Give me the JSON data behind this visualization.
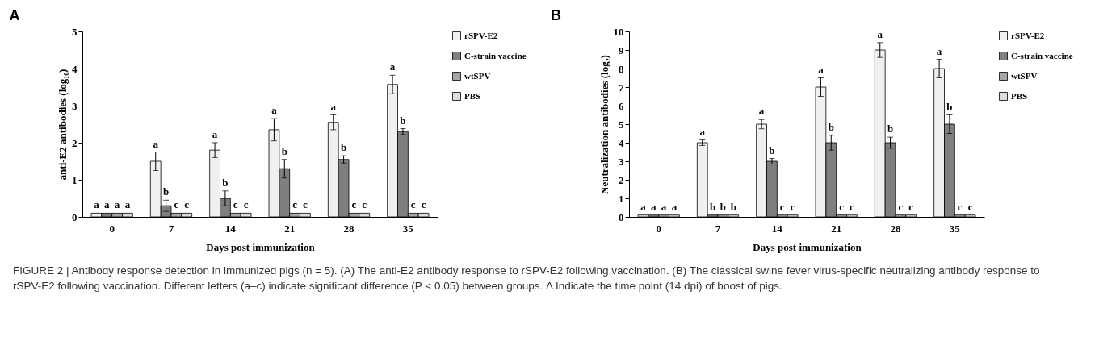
{
  "chart_data": [
    {
      "type": "bar",
      "title": "A",
      "xlabel": "Days post immunization",
      "ylabel": "anti-E2 antibodies (log₁₀)",
      "categories": [
        "0",
        "7",
        "14",
        "21",
        "28",
        "35"
      ],
      "ylim": [
        0,
        5
      ],
      "yticks": [
        0,
        1,
        2,
        3,
        4,
        5
      ],
      "legend": "top right",
      "series": [
        {
          "name": "rSPV-E2",
          "color": "#f0f0f0",
          "values": [
            0.1,
            1.5,
            1.8,
            2.35,
            2.55,
            3.57
          ],
          "errors": [
            null,
            0.25,
            0.2,
            0.3,
            0.2,
            0.25
          ],
          "value_labels": [
            "a",
            "a",
            "a",
            "a",
            "a",
            "a"
          ]
        },
        {
          "name": "C-strain vaccine",
          "color": "#7f7f7f",
          "values": [
            0.1,
            0.3,
            0.5,
            1.3,
            1.55,
            2.3
          ],
          "errors": [
            null,
            0.15,
            0.2,
            0.25,
            0.1,
            0.08
          ],
          "value_labels": [
            "a",
            "b",
            "b",
            "b",
            "b",
            "b"
          ]
        },
        {
          "name": "wtSPV",
          "color": "#a6a6a6",
          "values": [
            0.1,
            0.1,
            0.1,
            0.1,
            0.1,
            0.1
          ],
          "value_labels": [
            "a",
            "c",
            "c",
            "c",
            "c",
            "c"
          ]
        },
        {
          "name": "PBS",
          "color": "#dcdcdc",
          "values": [
            0.1,
            0.1,
            0.1,
            0.1,
            0.1,
            0.1
          ],
          "value_labels": [
            "a",
            "c",
            "c",
            "c",
            "c",
            "c"
          ]
        }
      ],
      "annotations": [
        "FIGURE 2 | Antibody response detection in immunized pigs (n = 5). (A) The anti-E2 antibody response to rSPV-E2 following vaccination. (B) The classical swine fever virus-specific neutralizing antibody response to rSPV-E2 following vaccination. Different letters (a–c) indicate significant difference (P < 0.05) between groups. Δ Indicate the time point (14 dpi) of boost of pigs."
      ]
    },
    {
      "type": "bar",
      "title": "B",
      "xlabel": "Days post immunization",
      "ylabel": "Neutralization antibodies (log₂)",
      "categories": [
        "0",
        "7",
        "14",
        "21",
        "28",
        "35"
      ],
      "ylim": [
        0,
        10
      ],
      "yticks": [
        0,
        1,
        2,
        3,
        4,
        5,
        6,
        7,
        8,
        9,
        10
      ],
      "legend": "top right",
      "series": [
        {
          "name": "rSPV-E2",
          "color": "#f0f0f0",
          "values": [
            0.1,
            4,
            5,
            7,
            9,
            8
          ],
          "errors": [
            null,
            0.15,
            0.25,
            0.5,
            0.4,
            0.5
          ],
          "value_labels": [
            "a",
            "a",
            "a",
            "a",
            "a",
            "a"
          ]
        },
        {
          "name": "C-strain vaccine",
          "color": "#7f7f7f",
          "values": [
            0.1,
            0.1,
            3,
            4,
            4,
            5
          ],
          "errors": [
            null,
            null,
            0.15,
            0.4,
            0.3,
            0.5
          ],
          "value_labels": [
            "a",
            "b",
            "b",
            "b",
            "b",
            "b"
          ]
        },
        {
          "name": "wtSPV",
          "color": "#a6a6a6",
          "values": [
            0.1,
            0.1,
            0.1,
            0.1,
            0.1,
            0.1
          ],
          "value_labels": [
            "a",
            "b",
            "c",
            "c",
            "c",
            "c"
          ]
        },
        {
          "name": "PBS",
          "color": "#dcdcdc",
          "values": [
            0.1,
            0.1,
            0.1,
            0.1,
            0.1,
            0.1
          ],
          "value_labels": [
            "a",
            "b",
            "c",
            "c",
            "c",
            "c"
          ]
        }
      ]
    }
  ]
}
